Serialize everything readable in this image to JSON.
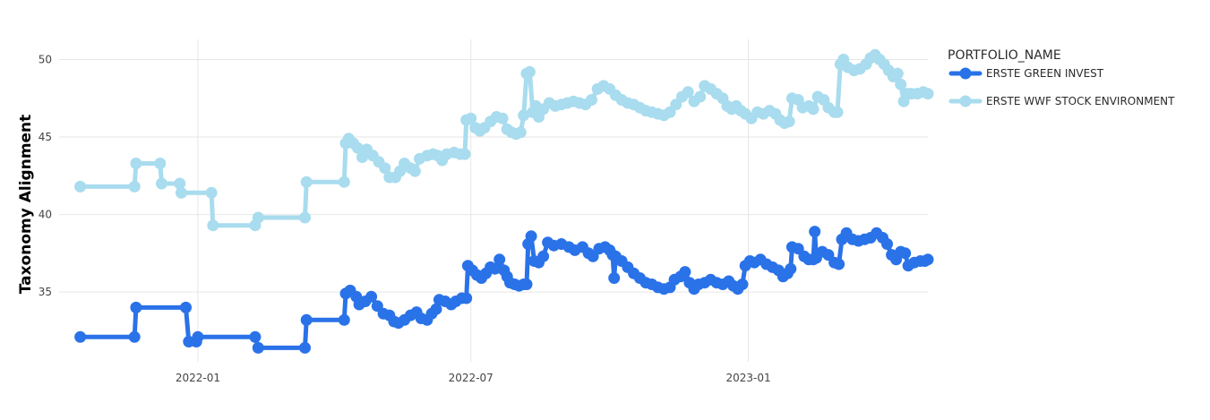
{
  "chart_data": {
    "type": "line",
    "title": "",
    "xlabel": "",
    "ylabel": "Taxonomy Alignment",
    "x_axis_type": "date",
    "xlim": [
      "2021-10-01",
      "2023-04-30"
    ],
    "ylim": [
      30.5,
      51.3
    ],
    "x_ticks": [
      {
        "value": "2022-01-01",
        "label": "2022-01"
      },
      {
        "value": "2022-07-01",
        "label": "2022-07"
      },
      {
        "value": "2023-01-01",
        "label": "2023-01"
      }
    ],
    "y_ticks": [
      35,
      40,
      45,
      50
    ],
    "grid": true,
    "legend": {
      "title": "PORTFOLIO_NAME",
      "position": "top-right"
    },
    "series": [
      {
        "name": "ERSTE GREEN INVEST",
        "color": "#2a72e8",
        "points": [
          [
            "2021-10-15",
            32.1
          ],
          [
            "2021-11-20",
            32.1
          ],
          [
            "2021-11-21",
            34.0
          ],
          [
            "2021-12-24",
            34.0
          ],
          [
            "2021-12-26",
            31.8
          ],
          [
            "2021-12-31",
            31.8
          ],
          [
            "2022-01-01",
            32.1
          ],
          [
            "2022-02-08",
            32.1
          ],
          [
            "2022-02-10",
            31.4
          ],
          [
            "2022-03-13",
            31.4
          ],
          [
            "2022-03-14",
            33.2
          ],
          [
            "2022-04-08",
            33.2
          ],
          [
            "2022-04-09",
            34.9
          ],
          [
            "2022-04-12",
            35.1
          ],
          [
            "2022-04-16",
            34.7
          ],
          [
            "2022-04-18",
            34.2
          ],
          [
            "2022-04-22",
            34.4
          ],
          [
            "2022-04-26",
            34.7
          ],
          [
            "2022-04-30",
            34.1
          ],
          [
            "2022-05-04",
            33.6
          ],
          [
            "2022-05-08",
            33.5
          ],
          [
            "2022-05-11",
            33.1
          ],
          [
            "2022-05-14",
            33.0
          ],
          [
            "2022-05-18",
            33.2
          ],
          [
            "2022-05-22",
            33.5
          ],
          [
            "2022-05-26",
            33.7
          ],
          [
            "2022-05-29",
            33.3
          ],
          [
            "2022-06-02",
            33.2
          ],
          [
            "2022-06-05",
            33.6
          ],
          [
            "2022-06-08",
            33.9
          ],
          [
            "2022-06-10",
            34.5
          ],
          [
            "2022-06-14",
            34.4
          ],
          [
            "2022-06-18",
            34.2
          ],
          [
            "2022-06-21",
            34.4
          ],
          [
            "2022-06-25",
            34.6
          ],
          [
            "2022-06-28",
            34.6
          ],
          [
            "2022-06-29",
            36.7
          ],
          [
            "2022-07-02",
            36.4
          ],
          [
            "2022-07-05",
            36.1
          ],
          [
            "2022-07-08",
            35.9
          ],
          [
            "2022-07-11",
            36.2
          ],
          [
            "2022-07-14",
            36.6
          ],
          [
            "2022-07-17",
            36.5
          ],
          [
            "2022-07-20",
            37.1
          ],
          [
            "2022-07-23",
            36.4
          ],
          [
            "2022-07-25",
            36.0
          ],
          [
            "2022-07-27",
            35.6
          ],
          [
            "2022-07-30",
            35.5
          ],
          [
            "2022-08-02",
            35.4
          ],
          [
            "2022-08-05",
            35.5
          ],
          [
            "2022-08-07",
            35.5
          ],
          [
            "2022-08-08",
            38.1
          ],
          [
            "2022-08-10",
            38.6
          ],
          [
            "2022-08-12",
            37.0
          ],
          [
            "2022-08-15",
            36.9
          ],
          [
            "2022-08-18",
            37.3
          ],
          [
            "2022-08-21",
            38.2
          ],
          [
            "2022-08-25",
            38.0
          ],
          [
            "2022-08-30",
            38.1
          ],
          [
            "2022-09-04",
            37.9
          ],
          [
            "2022-09-08",
            37.7
          ],
          [
            "2022-09-13",
            37.9
          ],
          [
            "2022-09-17",
            37.5
          ],
          [
            "2022-09-20",
            37.3
          ],
          [
            "2022-09-24",
            37.8
          ],
          [
            "2022-09-28",
            37.9
          ],
          [
            "2022-10-01",
            37.7
          ],
          [
            "2022-10-03",
            37.4
          ],
          [
            "2022-10-04",
            35.9
          ],
          [
            "2022-10-05",
            37.3
          ],
          [
            "2022-10-09",
            37.0
          ],
          [
            "2022-10-13",
            36.6
          ],
          [
            "2022-10-17",
            36.2
          ],
          [
            "2022-10-21",
            35.9
          ],
          [
            "2022-10-25",
            35.6
          ],
          [
            "2022-10-29",
            35.5
          ],
          [
            "2022-11-02",
            35.3
          ],
          [
            "2022-11-06",
            35.2
          ],
          [
            "2022-11-10",
            35.3
          ],
          [
            "2022-11-13",
            35.8
          ],
          [
            "2022-11-17",
            36.0
          ],
          [
            "2022-11-20",
            36.3
          ],
          [
            "2022-11-23",
            35.6
          ],
          [
            "2022-11-26",
            35.2
          ],
          [
            "2022-11-29",
            35.5
          ],
          [
            "2022-12-03",
            35.6
          ],
          [
            "2022-12-07",
            35.8
          ],
          [
            "2022-12-11",
            35.6
          ],
          [
            "2022-12-15",
            35.5
          ],
          [
            "2022-12-19",
            35.7
          ],
          [
            "2022-12-22",
            35.4
          ],
          [
            "2022-12-25",
            35.2
          ],
          [
            "2022-12-28",
            35.5
          ],
          [
            "2022-12-30",
            36.7
          ],
          [
            "2023-01-02",
            37.0
          ],
          [
            "2023-01-05",
            36.9
          ],
          [
            "2023-01-09",
            37.1
          ],
          [
            "2023-01-13",
            36.8
          ],
          [
            "2023-01-17",
            36.6
          ],
          [
            "2023-01-21",
            36.4
          ],
          [
            "2023-01-24",
            36.0
          ],
          [
            "2023-01-27",
            36.2
          ],
          [
            "2023-01-29",
            36.5
          ],
          [
            "2023-01-30",
            37.9
          ],
          [
            "2023-02-03",
            37.8
          ],
          [
            "2023-02-07",
            37.3
          ],
          [
            "2023-02-10",
            37.1
          ],
          [
            "2023-02-13",
            37.1
          ],
          [
            "2023-02-14",
            38.9
          ],
          [
            "2023-02-15",
            37.2
          ],
          [
            "2023-02-19",
            37.6
          ],
          [
            "2023-02-23",
            37.4
          ],
          [
            "2023-02-27",
            36.9
          ],
          [
            "2023-03-02",
            36.8
          ],
          [
            "2023-03-04",
            38.4
          ],
          [
            "2023-03-07",
            38.8
          ],
          [
            "2023-03-11",
            38.4
          ],
          [
            "2023-03-15",
            38.3
          ],
          [
            "2023-03-19",
            38.4
          ],
          [
            "2023-03-23",
            38.5
          ],
          [
            "2023-03-27",
            38.8
          ],
          [
            "2023-03-31",
            38.5
          ],
          [
            "2023-04-03",
            38.1
          ],
          [
            "2023-04-06",
            37.4
          ],
          [
            "2023-04-09",
            37.1
          ],
          [
            "2023-04-12",
            37.6
          ],
          [
            "2023-04-15",
            37.5
          ],
          [
            "2023-04-17",
            36.7
          ],
          [
            "2023-04-21",
            36.9
          ],
          [
            "2023-04-25",
            37.0
          ],
          [
            "2023-04-28",
            37.0
          ],
          [
            "2023-04-30",
            37.1
          ]
        ]
      },
      {
        "name": "ERSTE WWF STOCK ENVIRONMENT",
        "color": "#a8dcee",
        "points": [
          [
            "2021-10-15",
            41.8
          ],
          [
            "2021-11-20",
            41.8
          ],
          [
            "2021-11-21",
            43.3
          ],
          [
            "2021-12-07",
            43.3
          ],
          [
            "2021-12-08",
            42.0
          ],
          [
            "2021-12-20",
            42.0
          ],
          [
            "2021-12-21",
            41.4
          ],
          [
            "2022-01-10",
            41.4
          ],
          [
            "2022-01-11",
            39.3
          ],
          [
            "2022-02-08",
            39.3
          ],
          [
            "2022-02-10",
            39.8
          ],
          [
            "2022-03-13",
            39.8
          ],
          [
            "2022-03-14",
            42.1
          ],
          [
            "2022-04-08",
            42.1
          ],
          [
            "2022-04-09",
            44.6
          ],
          [
            "2022-04-11",
            44.9
          ],
          [
            "2022-04-14",
            44.6
          ],
          [
            "2022-04-17",
            44.3
          ],
          [
            "2022-04-20",
            43.7
          ],
          [
            "2022-04-23",
            44.2
          ],
          [
            "2022-04-27",
            43.8
          ],
          [
            "2022-05-01",
            43.4
          ],
          [
            "2022-05-05",
            43.0
          ],
          [
            "2022-05-08",
            42.4
          ],
          [
            "2022-05-12",
            42.4
          ],
          [
            "2022-05-15",
            42.8
          ],
          [
            "2022-05-18",
            43.3
          ],
          [
            "2022-05-22",
            43.0
          ],
          [
            "2022-05-25",
            42.8
          ],
          [
            "2022-05-28",
            43.6
          ],
          [
            "2022-06-02",
            43.8
          ],
          [
            "2022-06-06",
            43.9
          ],
          [
            "2022-06-09",
            43.8
          ],
          [
            "2022-06-12",
            43.5
          ],
          [
            "2022-06-15",
            43.9
          ],
          [
            "2022-06-20",
            44.0
          ],
          [
            "2022-06-24",
            43.9
          ],
          [
            "2022-06-27",
            43.9
          ],
          [
            "2022-06-28",
            46.1
          ],
          [
            "2022-07-01",
            46.2
          ],
          [
            "2022-07-04",
            45.6
          ],
          [
            "2022-07-07",
            45.4
          ],
          [
            "2022-07-10",
            45.6
          ],
          [
            "2022-07-14",
            46.0
          ],
          [
            "2022-07-18",
            46.3
          ],
          [
            "2022-07-22",
            46.2
          ],
          [
            "2022-07-25",
            45.5
          ],
          [
            "2022-07-28",
            45.3
          ],
          [
            "2022-07-31",
            45.2
          ],
          [
            "2022-08-03",
            45.3
          ],
          [
            "2022-08-05",
            46.4
          ],
          [
            "2022-08-07",
            49.1
          ],
          [
            "2022-08-09",
            49.2
          ],
          [
            "2022-08-11",
            46.6
          ],
          [
            "2022-08-13",
            47.0
          ],
          [
            "2022-08-15",
            46.3
          ],
          [
            "2022-08-18",
            46.8
          ],
          [
            "2022-08-22",
            47.2
          ],
          [
            "2022-08-26",
            47.0
          ],
          [
            "2022-08-30",
            47.1
          ],
          [
            "2022-09-03",
            47.2
          ],
          [
            "2022-09-07",
            47.3
          ],
          [
            "2022-09-11",
            47.2
          ],
          [
            "2022-09-15",
            47.1
          ],
          [
            "2022-09-19",
            47.4
          ],
          [
            "2022-09-23",
            48.1
          ],
          [
            "2022-09-27",
            48.3
          ],
          [
            "2022-10-01",
            48.1
          ],
          [
            "2022-10-05",
            47.7
          ],
          [
            "2022-10-09",
            47.4
          ],
          [
            "2022-10-13",
            47.2
          ],
          [
            "2022-10-17",
            47.1
          ],
          [
            "2022-10-21",
            46.9
          ],
          [
            "2022-10-25",
            46.7
          ],
          [
            "2022-10-29",
            46.6
          ],
          [
            "2022-11-02",
            46.5
          ],
          [
            "2022-11-06",
            46.4
          ],
          [
            "2022-11-10",
            46.6
          ],
          [
            "2022-11-14",
            47.1
          ],
          [
            "2022-11-18",
            47.6
          ],
          [
            "2022-11-22",
            47.9
          ],
          [
            "2022-11-26",
            47.3
          ],
          [
            "2022-11-30",
            47.6
          ],
          [
            "2022-12-03",
            48.3
          ],
          [
            "2022-12-07",
            48.1
          ],
          [
            "2022-12-11",
            47.8
          ],
          [
            "2022-12-15",
            47.5
          ],
          [
            "2022-12-18",
            47.0
          ],
          [
            "2022-12-21",
            46.8
          ],
          [
            "2022-12-24",
            47.0
          ],
          [
            "2022-12-27",
            46.7
          ],
          [
            "2022-12-30",
            46.5
          ],
          [
            "2023-01-03",
            46.2
          ],
          [
            "2023-01-07",
            46.6
          ],
          [
            "2023-01-11",
            46.5
          ],
          [
            "2023-01-15",
            46.7
          ],
          [
            "2023-01-19",
            46.5
          ],
          [
            "2023-01-22",
            46.1
          ],
          [
            "2023-01-25",
            45.9
          ],
          [
            "2023-01-28",
            46.0
          ],
          [
            "2023-01-30",
            47.5
          ],
          [
            "2023-02-03",
            47.4
          ],
          [
            "2023-02-06",
            46.9
          ],
          [
            "2023-02-10",
            47.0
          ],
          [
            "2023-02-13",
            46.8
          ],
          [
            "2023-02-16",
            47.6
          ],
          [
            "2023-02-20",
            47.4
          ],
          [
            "2023-02-23",
            46.9
          ],
          [
            "2023-02-27",
            46.6
          ],
          [
            "2023-03-01",
            46.6
          ],
          [
            "2023-03-03",
            49.7
          ],
          [
            "2023-03-05",
            50.0
          ],
          [
            "2023-03-08",
            49.5
          ],
          [
            "2023-03-12",
            49.3
          ],
          [
            "2023-03-16",
            49.4
          ],
          [
            "2023-03-20",
            49.7
          ],
          [
            "2023-03-23",
            50.1
          ],
          [
            "2023-03-26",
            50.3
          ],
          [
            "2023-03-29",
            50.0
          ],
          [
            "2023-04-01",
            49.7
          ],
          [
            "2023-04-04",
            49.3
          ],
          [
            "2023-04-07",
            48.9
          ],
          [
            "2023-04-10",
            49.1
          ],
          [
            "2023-04-12",
            48.4
          ],
          [
            "2023-04-14",
            47.3
          ],
          [
            "2023-04-16",
            47.8
          ],
          [
            "2023-04-19",
            47.8
          ],
          [
            "2023-04-23",
            47.8
          ],
          [
            "2023-04-27",
            47.9
          ],
          [
            "2023-04-30",
            47.8
          ]
        ]
      }
    ]
  }
}
